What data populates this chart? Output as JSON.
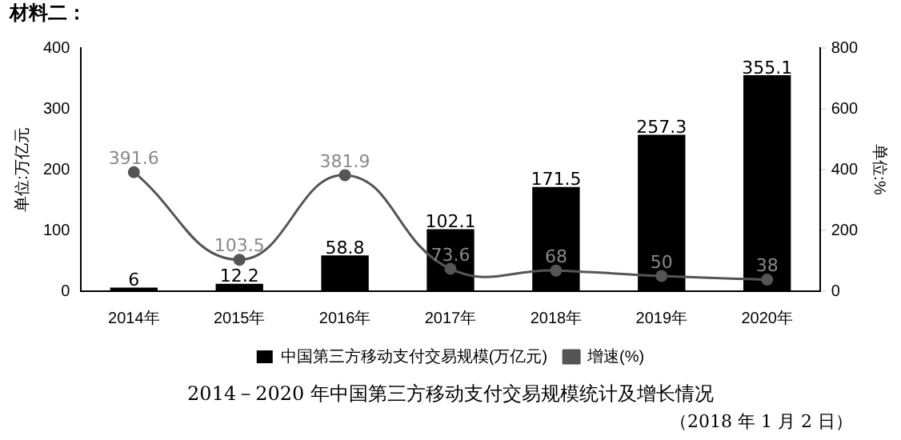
{
  "chart_data": {
    "type": "bar",
    "title": "2014－2020 年中国第三方移动支付交易规模统计及增长情况",
    "ylabel": "单位:万亿元",
    "y2label": "单位:%",
    "annotations": [
      "材料二：",
      "（2018 年 1 月 2 日）"
    ],
    "categories": [
      "2014年",
      "2015年",
      "2016年",
      "2017年",
      "2018年",
      "2019年",
      "2020年"
    ],
    "series": [
      {
        "name": "中国第三方移动支付交易规模(万亿元)",
        "color": "#000000",
        "values": [
          6,
          12.2,
          58.8,
          102.1,
          171.5,
          257.3,
          355.1
        ]
      },
      {
        "name": "增速(%)",
        "type": "line",
        "axis": "y2",
        "color": "#555555",
        "values": [
          391.6,
          103.5,
          381.9,
          73.6,
          68,
          50,
          38
        ]
      }
    ],
    "ylim": [
      0,
      400
    ],
    "yticks": [
      0,
      100,
      200,
      300,
      400
    ],
    "y2lim": [
      0,
      800
    ],
    "y2ticks": [
      0,
      200,
      400,
      600,
      800
    ],
    "data_labels": true,
    "legend": "bottom",
    "marker": "circle",
    "line_style": "solid"
  }
}
